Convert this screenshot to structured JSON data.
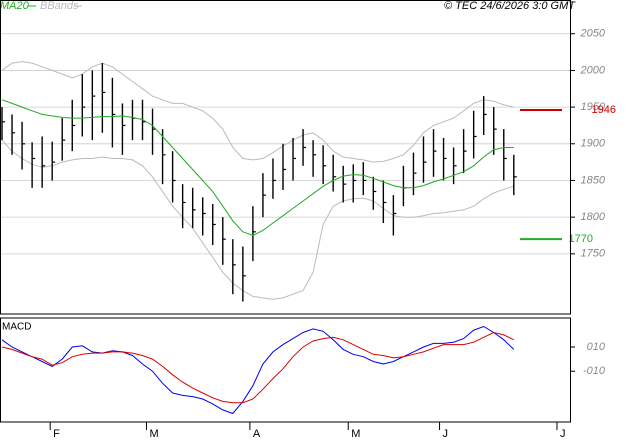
{
  "chart_data": [
    {
      "type": "ohlc",
      "source": "© TEC 24/6/2026 3:0 GMT",
      "x": [
        0,
        1,
        2,
        3,
        4,
        5,
        6,
        7,
        8,
        9,
        10,
        11,
        12,
        13,
        14,
        15,
        16,
        17,
        18,
        19,
        20,
        21,
        22,
        23,
        24,
        25,
        26,
        27,
        28,
        29,
        30,
        31,
        32,
        33,
        34,
        35,
        36,
        37,
        38,
        39,
        40,
        41,
        42,
        43,
        44,
        45,
        46,
        47,
        48,
        49,
        50,
        51
      ],
      "xlim": [
        -0.2,
        56.6
      ],
      "high": [
        1950,
        1940,
        1930,
        1902,
        1910,
        1903,
        1935,
        1960,
        1995,
        2000,
        2010,
        1990,
        1955,
        1960,
        1960,
        1948,
        1920,
        1890,
        1845,
        1840,
        1827,
        1818,
        1800,
        1770,
        1760,
        1815,
        1860,
        1880,
        1900,
        1908,
        1920,
        1905,
        1898,
        1885,
        1870,
        1872,
        1875,
        1855,
        1850,
        1830,
        1870,
        1888,
        1910,
        1920,
        1908,
        1895,
        1920,
        1945,
        1965,
        1950,
        1920,
        1885
      ],
      "low": [
        1905,
        1885,
        1865,
        1840,
        1840,
        1850,
        1877,
        1890,
        1910,
        1905,
        1915,
        1895,
        1885,
        1905,
        1905,
        1885,
        1845,
        1820,
        1785,
        1785,
        1775,
        1762,
        1735,
        1695,
        1685,
        1740,
        1800,
        1825,
        1837,
        1850,
        1870,
        1855,
        1845,
        1835,
        1820,
        1820,
        1830,
        1810,
        1792,
        1775,
        1815,
        1830,
        1847,
        1855,
        1850,
        1845,
        1860,
        1880,
        1912,
        1885,
        1850,
        1830
      ],
      "close": [
        1930,
        1915,
        1900,
        1880,
        1870,
        1875,
        1905,
        1925,
        1950,
        1965,
        1970,
        1940,
        1925,
        1935,
        1930,
        1920,
        1885,
        1850,
        1820,
        1810,
        1805,
        1790,
        1770,
        1735,
        1720,
        1780,
        1830,
        1850,
        1865,
        1880,
        1895,
        1885,
        1870,
        1855,
        1845,
        1850,
        1850,
        1835,
        1820,
        1805,
        1840,
        1860,
        1875,
        1890,
        1880,
        1870,
        1890,
        1910,
        1940,
        1920,
        1880,
        1855
      ],
      "bar_color": "#000000",
      "series": [
        {
          "name": "MA20",
          "color": "#22aa22",
          "values": [
            1960,
            1955,
            1950,
            1945,
            1940,
            1938,
            1936,
            1935,
            1935,
            1936,
            1937,
            1937,
            1938,
            1936,
            1933,
            1925,
            1910,
            1895,
            1880,
            1865,
            1850,
            1835,
            1815,
            1795,
            1780,
            1775,
            1782,
            1792,
            1802,
            1812,
            1822,
            1832,
            1842,
            1850,
            1856,
            1858,
            1857,
            1853,
            1848,
            1843,
            1840,
            1840,
            1843,
            1848,
            1852,
            1857,
            1862,
            1870,
            1882,
            1892,
            1895,
            1895
          ]
        },
        {
          "name": "BBands",
          "color": "#bbbbbb",
          "upper": [
            2000,
            2010,
            2012,
            2010,
            2005,
            2000,
            1995,
            1990,
            1995,
            2005,
            2010,
            2005,
            1995,
            1985,
            1975,
            1965,
            1960,
            1955,
            1955,
            1950,
            1945,
            1935,
            1920,
            1895,
            1880,
            1878,
            1880,
            1888,
            1897,
            1905,
            1912,
            1915,
            1905,
            1890,
            1882,
            1880,
            1878,
            1875,
            1876,
            1880,
            1885,
            1898,
            1915,
            1925,
            1930,
            1935,
            1945,
            1955,
            1960,
            1958,
            1953,
            1950
          ],
          "lower": [
            1905,
            1890,
            1880,
            1872,
            1868,
            1870,
            1875,
            1878,
            1880,
            1880,
            1882,
            1880,
            1880,
            1878,
            1870,
            1855,
            1835,
            1815,
            1800,
            1785,
            1765,
            1745,
            1725,
            1710,
            1700,
            1692,
            1690,
            1688,
            1690,
            1695,
            1700,
            1725,
            1790,
            1815,
            1822,
            1825,
            1826,
            1822,
            1812,
            1802,
            1800,
            1800,
            1802,
            1805,
            1806,
            1808,
            1810,
            1815,
            1825,
            1833,
            1838,
            1842
          ]
        }
      ],
      "levels": [
        {
          "value": 1946,
          "color": "#cc0000"
        },
        {
          "value": 1770,
          "color": "#22aa22"
        }
      ],
      "ylim": [
        1668,
        2096
      ],
      "yticks": [
        1750,
        1800,
        1850,
        1900,
        1950,
        2000,
        2050
      ],
      "grid": true
    },
    {
      "type": "line",
      "title": "MACD",
      "series": [
        {
          "color": "#0000ee",
          "values": [
            16,
            10,
            6,
            2,
            -2,
            -6,
            0,
            10,
            11,
            6,
            5,
            7,
            6,
            3,
            -4,
            -10,
            -20,
            -28,
            -30,
            -31,
            -33,
            -37,
            -42,
            -45,
            -35,
            -22,
            -4,
            6,
            12,
            17,
            22,
            25,
            23,
            16,
            8,
            4,
            2,
            -2,
            -4,
            -2,
            2,
            6,
            10,
            13,
            13,
            14,
            17,
            24,
            27,
            22,
            16,
            8
          ]
        },
        {
          "color": "#dd0000",
          "values": [
            10,
            8,
            5,
            2,
            0,
            -5,
            -3,
            2,
            4,
            5,
            5,
            6,
            6,
            5,
            3,
            0,
            -6,
            -13,
            -19,
            -24,
            -28,
            -32,
            -35,
            -36,
            -36,
            -33,
            -25,
            -16,
            -8,
            2,
            10,
            15,
            17,
            18,
            16,
            12,
            8,
            4,
            3,
            1,
            2,
            4,
            6,
            9,
            12,
            12,
            12,
            14,
            18,
            22,
            20,
            16
          ]
        }
      ],
      "ylim": [
        -52,
        34
      ],
      "yticks": [
        {
          "value": -10,
          "label": "-010"
        },
        {
          "value": 10,
          "label": "010"
        }
      ],
      "xticks": [
        {
          "value": 4.8,
          "label": "F"
        },
        {
          "value": 14.4,
          "label": "M"
        },
        {
          "value": 24.7,
          "label": "A"
        },
        {
          "value": 34.5,
          "label": "M"
        },
        {
          "value": 43.6,
          "label": "J"
        },
        {
          "value": 55.3,
          "label": "J"
        }
      ]
    }
  ]
}
